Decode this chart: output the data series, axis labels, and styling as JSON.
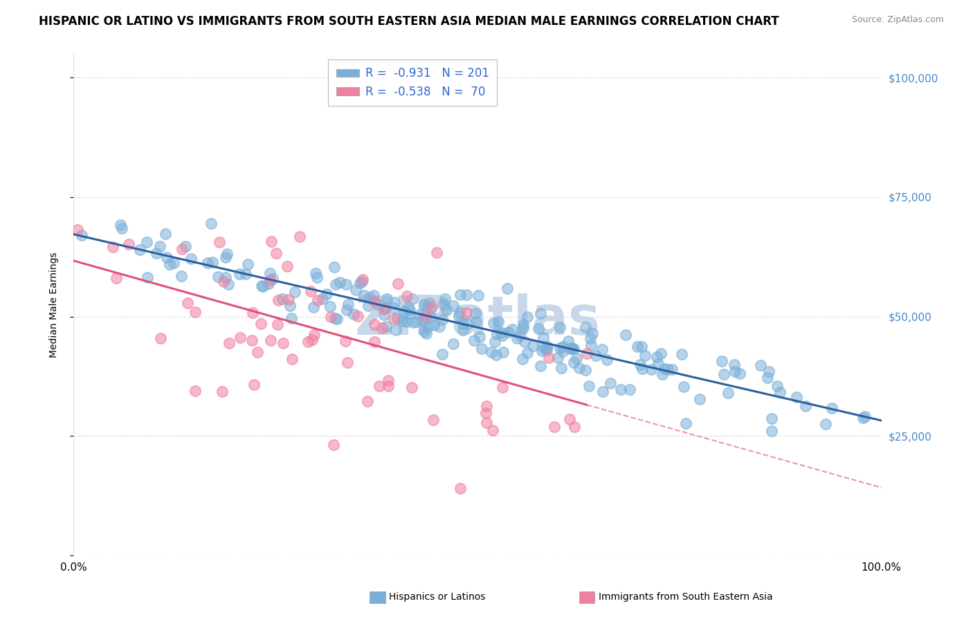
{
  "title": "HISPANIC OR LATINO VS IMMIGRANTS FROM SOUTH EASTERN ASIA MEDIAN MALE EARNINGS CORRELATION CHART",
  "source": "Source: ZipAtlas.com",
  "ylabel": "Median Male Earnings",
  "yticks": [
    0,
    25000,
    50000,
    75000,
    100000
  ],
  "ytick_labels": [
    "",
    "$25,000",
    "$50,000",
    "$75,000",
    "$100,000"
  ],
  "xlim": [
    0,
    1.0
  ],
  "ylim": [
    0,
    105000
  ],
  "series_blue": {
    "label": "Hispanics or Latinos",
    "R": -0.931,
    "N": 201,
    "dot_color": "#7ab0d8",
    "line_color": "#2d5fa0",
    "alpha": 0.55,
    "size": 120
  },
  "series_pink": {
    "label": "Immigrants from South Eastern Asia",
    "R": -0.538,
    "N": 70,
    "dot_color": "#f080a0",
    "line_color": "#e0507a",
    "alpha": 0.55,
    "size": 120
  },
  "legend_R_color": "#3366cc",
  "legend_N_color": "#111111",
  "watermark": "ZIPatlas",
  "watermark_color": "#c8d8ea",
  "background_color": "#ffffff",
  "grid_color": "#dddddd",
  "title_fontsize": 12,
  "axis_label_fontsize": 10,
  "tick_label_color": "#4488cc",
  "tick_label_fontsize": 11,
  "legend_fontsize": 12,
  "seed_blue": 7,
  "seed_pink": 13
}
